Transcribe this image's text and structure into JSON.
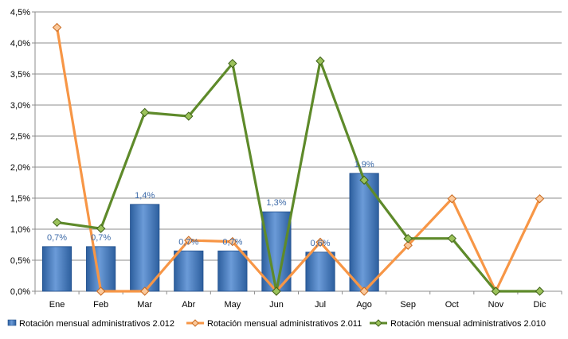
{
  "chart_data": {
    "type": "bar+line",
    "categories": [
      "Ene",
      "Feb",
      "Mar",
      "Abr",
      "May",
      "Jun",
      "Jul",
      "Ago",
      "Sep",
      "Oct",
      "Nov",
      "Dic"
    ],
    "ylim": [
      0,
      4.5
    ],
    "yticks": [
      "0,0%",
      "0,5%",
      "1,0%",
      "1,5%",
      "2,0%",
      "2,5%",
      "3,0%",
      "3,5%",
      "4,0%",
      "4,5%"
    ],
    "grid": true,
    "legend_position": "bottom",
    "series": [
      {
        "name": "Rotación mensual administrativos 2.012",
        "kind": "bar",
        "color": "#4a7fc1",
        "values": [
          0.72,
          0.72,
          1.4,
          0.65,
          0.65,
          1.28,
          0.63,
          1.9,
          null,
          null,
          null,
          null
        ],
        "labels": [
          "0,7%",
          "0,7%",
          "1,4%",
          "0,7%",
          "0,7%",
          "1,3%",
          "0,6%",
          "1,9%",
          null,
          null,
          null,
          null
        ]
      },
      {
        "name": "Rotación mensual administrativos 2.011",
        "kind": "line",
        "color": "#f79646",
        "values": [
          4.25,
          0.0,
          0.0,
          0.82,
          0.8,
          0.0,
          0.79,
          0.0,
          0.74,
          1.49,
          0.0,
          1.49
        ]
      },
      {
        "name": "Rotación mensual administrativos 2.010",
        "kind": "line",
        "color": "#5e8a2a",
        "values": [
          1.11,
          1.01,
          2.88,
          2.82,
          3.67,
          0.0,
          3.71,
          1.79,
          0.85,
          0.85,
          0.0,
          0.0
        ]
      }
    ]
  }
}
